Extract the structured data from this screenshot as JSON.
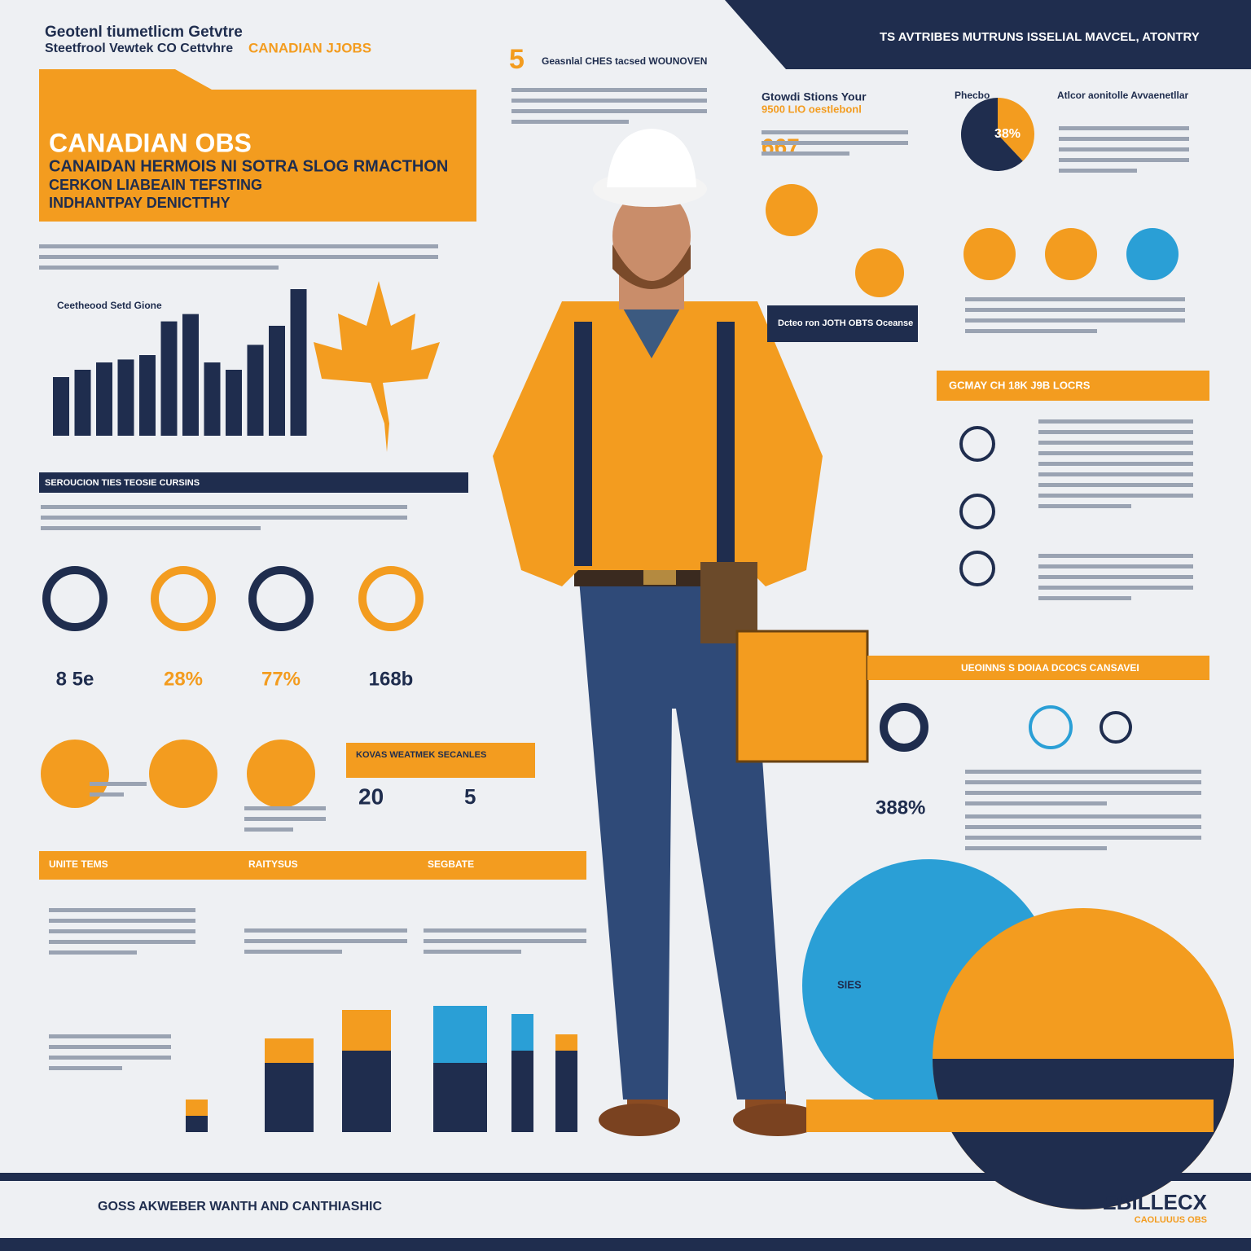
{
  "header": {
    "line1": "Geotenl tiumetlicm Getvtre",
    "line2": "Steetfrool Vewtek CO Cettvhre",
    "line2_accent": "CANADIAN JJOBS",
    "banner": "TS AVTRIBES MUTRUNS ISSELIAL MAVCEL, ATONTRY",
    "note_number": "5",
    "note": "Geasnlal CHES tacsed WOUNOVEN"
  },
  "hero": {
    "title": "CANADIAN OBS",
    "subtitle": [
      "CANAIDAN HERMOIS NI SOTRA SLOG RMACTHON",
      "CERKON LIABEAIN TEFSTING",
      "INDHANTPAY DENICTTHY"
    ]
  },
  "bar_chart": {
    "type": "bar",
    "title": "Ceetheood Setd Gione",
    "color": "#1f2d4e",
    "values": [
      40,
      45,
      50,
      52,
      55,
      78,
      83,
      50,
      45,
      62,
      75,
      100
    ]
  },
  "section_bar": "SEROUCION TIES TEOSIE CURSINS",
  "stats": [
    "8 5e",
    "28%",
    "77%",
    "168b"
  ],
  "mid": {
    "box": "KOVAS WEATMEK SECANLES",
    "stat1": "20",
    "stat2": "5"
  },
  "tabs": [
    "UNITE TEMS",
    "RAITYSUS",
    "SEGBATE"
  ],
  "stacked_chart": {
    "type": "stacked_bar",
    "series": [
      {
        "color": "#1f2d4e",
        "values": [
          20,
          85,
          100,
          85,
          100,
          100
        ]
      },
      {
        "color": "#f39c1f",
        "values": [
          20,
          30,
          50,
          null,
          null,
          20
        ]
      },
      {
        "color": "#2a9fd6",
        "values": [
          null,
          null,
          null,
          70,
          45,
          null
        ]
      }
    ]
  },
  "right": {
    "growth_title": "Gtowdi Stions Your",
    "growth_sub": "9500 LIO oestlebonl",
    "growth_value": "667",
    "callout": "Dcteo ron JOTH OBTS Oceanse",
    "pie_title": "Phecbo",
    "pie_note": "Atlcor aonitolle Avvaenetllar",
    "pie": {
      "type": "pie",
      "values": [
        38,
        62
      ],
      "colors": [
        "#f39c1f",
        "#1f2d4e"
      ],
      "center_label": "38%"
    },
    "banner1": "GCMAY CH 18K J9B LOCRS",
    "banner2": "UEOINNS S DOIAA DCOCS CANSAVEI",
    "stat": "388%",
    "circle_label": "SIES"
  },
  "footer": {
    "left": "GOSS AKWEBER WANTH AND CANTHIASHIC",
    "brand": "EBILLECX",
    "brand_sub": "CAOLUUUS OBS"
  }
}
